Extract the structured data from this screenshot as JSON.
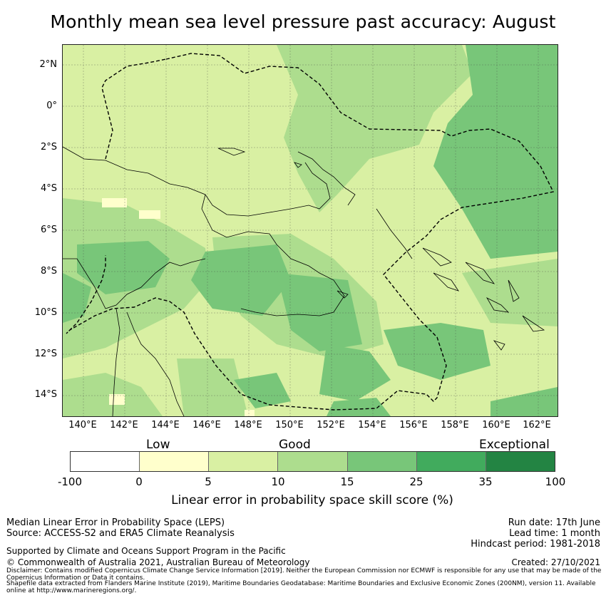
{
  "title": "Monthly mean sea level pressure past accuracy: August",
  "map": {
    "lat_labels": [
      "2°N",
      "0°",
      "2°S",
      "4°S",
      "6°S",
      "8°S",
      "10°S",
      "12°S",
      "14°S"
    ],
    "lon_labels": [
      "140°E",
      "142°E",
      "144°E",
      "146°E",
      "148°E",
      "150°E",
      "152°E",
      "154°E",
      "156°E",
      "158°E",
      "160°E",
      "162°E"
    ],
    "lon_range": [
      139,
      163
    ],
    "lat_range": [
      -15,
      3
    ],
    "gridlines": true
  },
  "legend": {
    "categories": [
      "Low",
      "Good",
      "Exceptional"
    ],
    "ticks": [
      "-100",
      "0",
      "5",
      "10",
      "15",
      "25",
      "35",
      "100"
    ],
    "colors": [
      "#ffffff",
      "#ffffcc",
      "#d9f0a3",
      "#addd8e",
      "#78c679",
      "#41ab5d",
      "#238443"
    ],
    "label": "Linear error in probability space skill score (%)"
  },
  "footer": {
    "method": "Median Linear Error in Probability Space (LEPS)",
    "source": "Source: ACCESS-S2 and ERA5 Climate Reanalysis",
    "support": "Supported by Climate and Oceans Support Program in the Pacific",
    "copyright": "© Commonwealth of Australia 2021, Australian Bureau of Meteorology",
    "disclaimer": "Disclaimer: Contains modified Copernicus Climate Change Service Information [2019]. Neither the European Commission nor ECMWF is responsible for any use that may be made of the Copernicus Information or Data it contains.",
    "shapefile": "Shapefile data extracted from Flanders Marine Institute (2019), Maritime Boundaries Geodatabase: Maritime Boundaries and Exclusive Economic Zones (200NM), version 11. Available online at http://www.marineregions.org/.",
    "run_date": "Run date: 17th June",
    "lead_time": "Lead time: 1 month",
    "hindcast": "Hindcast period: 1981-2018",
    "created": "Created: 27/10/2021"
  }
}
